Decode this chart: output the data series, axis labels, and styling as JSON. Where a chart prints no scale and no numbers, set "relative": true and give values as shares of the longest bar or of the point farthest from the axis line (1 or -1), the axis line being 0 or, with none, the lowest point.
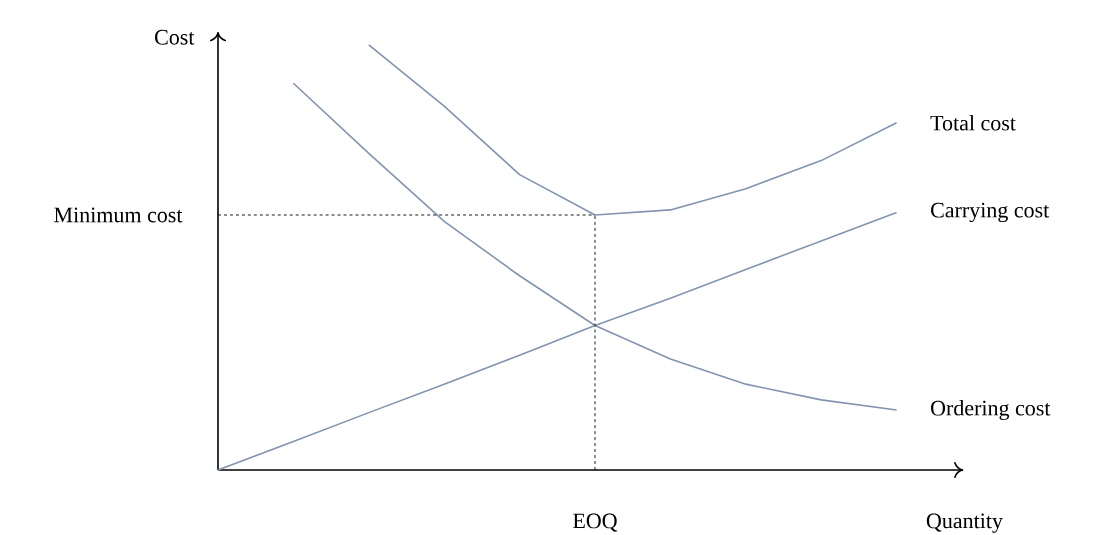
{
  "chart_data": {
    "type": "line",
    "relative": true,
    "xlabel": "Quantity",
    "ylabel": "Cost",
    "marker": "none",
    "categories": [
      null,
      null,
      null,
      null,
      null,
      null,
      null,
      null,
      null,
      null
    ],
    "annotations": [
      "EOQ"
    ],
    "series": [
      {
        "name": "Total cost",
        "color": "#8394ae",
        "values": [
          null,
          null,
          1.0,
          0.856,
          0.695,
          0.6,
          0.612,
          0.662,
          0.728,
          0.817
        ]
      },
      {
        "name": "Carrying cost",
        "color": "#8394ae",
        "values": [
          0,
          0.067,
          0.135,
          0.202,
          0.27,
          0.34,
          0.404,
          0.472,
          0.539,
          0.606
        ]
      },
      {
        "name": "Ordering cost",
        "color": "#8394ae",
        "values": [
          null,
          0.91,
          0.745,
          0.585,
          0.457,
          0.34,
          0.261,
          0.202,
          0.165,
          0.141
        ]
      }
    ],
    "ref_lines": [
      {
        "axis": "y",
        "value": 0.6,
        "label": "Minimum cost",
        "line_style": "dashed",
        "color": "#000000"
      }
    ]
  }
}
